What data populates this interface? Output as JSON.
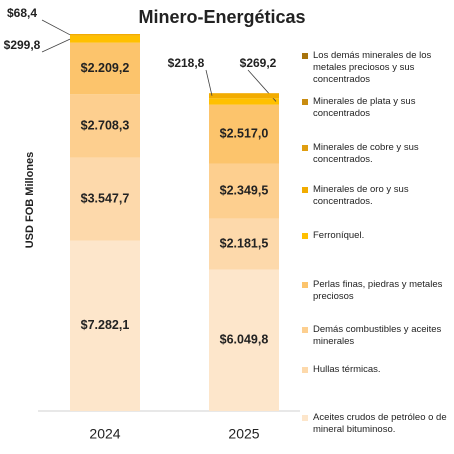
{
  "chart_data": {
    "type": "stacked_bar",
    "title": "Minero-Energéticas",
    "y_label": "USD FOB Millones",
    "categories": [
      "2024",
      "2025"
    ],
    "series": [
      {
        "name": "Aceites crudos de petróleo o de mineral bituminoso.",
        "color": "#fde6cb",
        "values": [
          7282.1,
          6049.8
        ],
        "value_labels": [
          "$7.282,1",
          "$6.049,8"
        ]
      },
      {
        "name": "Hullas térmicas.",
        "color": "#fdd9ab",
        "values": [
          3547.7,
          2181.5
        ],
        "value_labels": [
          "$3.547,7",
          "$2.181,5"
        ]
      },
      {
        "name": "Demás combustibles y aceites minerales",
        "color": "#fdcf8f",
        "values": [
          2708.3,
          2349.5
        ],
        "value_labels": [
          "$2.708,3",
          "$2.349,5"
        ]
      },
      {
        "name": "Perlas finas, piedras y metales preciosos",
        "color": "#fcc46c",
        "values": [
          2209.2,
          2517.0
        ],
        "value_labels": [
          "$2.209,2",
          "$2.517,0"
        ]
      },
      {
        "name": "Ferroníquel.",
        "color": "#ffc000",
        "values": [
          299.8,
          269.2
        ],
        "value_labels": [
          "$299,8",
          "$269,2"
        ]
      },
      {
        "name": "Minerales de oro y sus concentrados.",
        "color": "#f2ac00",
        "values": [
          68.4,
          218.8
        ],
        "value_labels": [
          "$68,4",
          "$218,8"
        ]
      },
      {
        "name": "Minerales de cobre y sus concentrados.",
        "color": "#e09e10",
        "values": [
          null,
          null
        ],
        "value_labels": [
          null,
          null
        ]
      },
      {
        "name": "Minerales de plata y sus concentrados",
        "color": "#c98c10",
        "values": [
          null,
          null
        ],
        "value_labels": [
          null,
          null
        ]
      },
      {
        "name": "Los demás minerales de los metales preciosos y sus concentrados",
        "color": "#a8740c",
        "values": [
          null,
          null
        ],
        "value_labels": [
          null,
          null
        ]
      }
    ]
  }
}
